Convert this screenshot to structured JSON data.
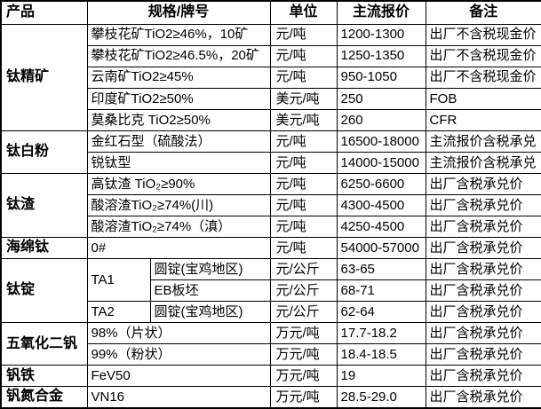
{
  "table": {
    "headers": {
      "product": "产品",
      "spec": "规格/牌号",
      "unit": "单位",
      "price": "主流报价",
      "note": "备注"
    },
    "rows": [
      {
        "product": "钛精矿",
        "spec": "攀枝花矿TiO2≥46%，10矿",
        "unit": "元/吨",
        "price": "1200-1300",
        "note": "出厂不含税现金价"
      },
      {
        "spec": "攀枝花矿TiO2≥46.5%，20矿",
        "unit": "元/吨",
        "price": "1250-1350",
        "note": "出厂不含税现金价"
      },
      {
        "spec": "云南矿TiO2≥45%",
        "unit": "元/吨",
        "price": "950-1050",
        "note": "出厂不含税现金价"
      },
      {
        "spec": "印度矿TiO2≥50%",
        "unit": "美元/吨",
        "price": "250",
        "note": "FOB"
      },
      {
        "spec": "莫桑比克 TiO2≥50%",
        "unit": "美元/吨",
        "price": "260",
        "note": "CFR"
      },
      {
        "product": "钛白粉",
        "spec": "金红石型（硫酸法）",
        "unit": "元/吨",
        "price": "16500-18000",
        "note": "主流报价含税承兑"
      },
      {
        "spec": "锐钛型",
        "unit": "元/吨",
        "price": "14000-15000",
        "note": "主流报价含税承兑"
      },
      {
        "product": "钛渣",
        "spec": "高钛渣 TiO₂≥90%",
        "unit": "元/吨",
        "price": "6250-6600",
        "note": "出厂含税承兑价"
      },
      {
        "spec": "酸溶渣TiO₂≥74%(川)",
        "unit": "元/吨",
        "price": "4300-4500",
        "note": "出厂含税承兑价"
      },
      {
        "spec": "酸溶渣TiO₂≥74%（滇）",
        "unit": "元/吨",
        "price": "4250-4500",
        "note": "出厂含税承兑价"
      },
      {
        "product": "海绵钛",
        "spec": "0#",
        "unit": "元/吨",
        "price": "54000-57000",
        "note": "出厂含税承兑价"
      },
      {
        "product": "钛锭",
        "grade": "TA1",
        "spec": "圆锭(宝鸡地区)",
        "unit": "元/公斤",
        "price": "63-65",
        "note": "出厂含税承兑价"
      },
      {
        "spec": "EB板坯",
        "unit": "元/公斤",
        "price": "68-71",
        "note": "出厂含税承兑价"
      },
      {
        "grade": "TA2",
        "spec": "圆锭(宝鸡地区)",
        "unit": "元/公斤",
        "price": "62-64",
        "note": "出厂含税承兑价"
      },
      {
        "product": "五氧化二钒",
        "spec": "98%（片状）",
        "unit": "万元/吨",
        "price": "17.7-18.2",
        "note": "出厂含税承兑价"
      },
      {
        "spec": "99%（粉状）",
        "unit": "万元/吨",
        "price": "18.4-18.5",
        "note": "出厂含税承兑价"
      },
      {
        "product": "钒铁",
        "spec": "FeV50",
        "unit": "万元/吨",
        "price": "19",
        "note": "出厂含税承兑价"
      },
      {
        "product": "钒氮合金",
        "spec": "VN16",
        "unit": "万元/吨",
        "price": "28.5-29.0",
        "note": "出厂含税承兑价"
      }
    ]
  }
}
